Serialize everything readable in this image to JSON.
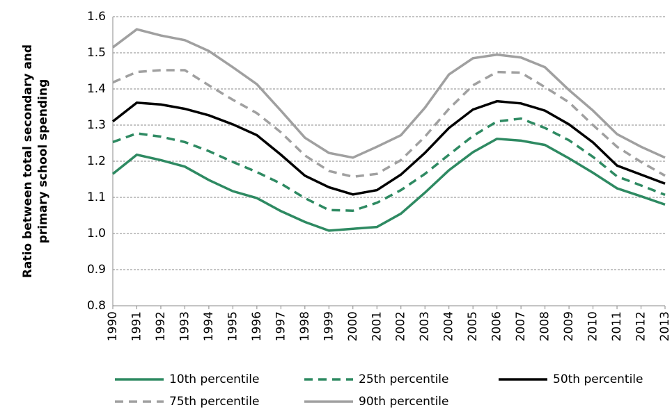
{
  "chart_data": {
    "type": "line",
    "ylabel": [
      "Ratio between total secondary and",
      "primary school spending"
    ],
    "categories": [
      "1990",
      "1991",
      "1992",
      "1993",
      "1994",
      "1995",
      "1996",
      "1997",
      "1998",
      "1999",
      "2000",
      "2001",
      "2002",
      "2003",
      "2004",
      "2005",
      "2006",
      "2007",
      "2008",
      "2009",
      "2010",
      "2011",
      "2012",
      "2013"
    ],
    "series": [
      {
        "name": "10th percentile",
        "color": "#2e8a62",
        "dash": false,
        "values": [
          1.165,
          1.218,
          1.203,
          1.185,
          1.148,
          1.117,
          1.098,
          1.062,
          1.032,
          1.008,
          1.013,
          1.018,
          1.055,
          1.113,
          1.175,
          1.225,
          1.262,
          1.257,
          1.245,
          1.208,
          1.168,
          1.125,
          1.103,
          1.08
        ]
      },
      {
        "name": "25th percentile",
        "color": "#2e8a62",
        "dash": true,
        "values": [
          1.253,
          1.277,
          1.268,
          1.253,
          1.228,
          1.198,
          1.17,
          1.138,
          1.098,
          1.065,
          1.063,
          1.085,
          1.12,
          1.165,
          1.218,
          1.27,
          1.31,
          1.318,
          1.292,
          1.258,
          1.212,
          1.158,
          1.133,
          1.107
        ]
      },
      {
        "name": "50th percentile",
        "color": "#000000",
        "dash": false,
        "values": [
          1.31,
          1.362,
          1.357,
          1.345,
          1.327,
          1.302,
          1.272,
          1.218,
          1.16,
          1.128,
          1.108,
          1.12,
          1.163,
          1.223,
          1.292,
          1.343,
          1.366,
          1.36,
          1.34,
          1.302,
          1.252,
          1.188,
          1.163,
          1.138
        ]
      },
      {
        "name": "75th percentile",
        "color": "#a0a0a0",
        "dash": true,
        "values": [
          1.418,
          1.447,
          1.452,
          1.452,
          1.41,
          1.37,
          1.333,
          1.28,
          1.216,
          1.173,
          1.157,
          1.165,
          1.203,
          1.268,
          1.345,
          1.41,
          1.447,
          1.445,
          1.405,
          1.363,
          1.3,
          1.24,
          1.198,
          1.16
        ]
      },
      {
        "name": "90th percentile",
        "color": "#a0a0a0",
        "dash": false,
        "values": [
          1.515,
          1.565,
          1.548,
          1.535,
          1.505,
          1.46,
          1.413,
          1.34,
          1.265,
          1.223,
          1.21,
          1.24,
          1.272,
          1.348,
          1.44,
          1.485,
          1.495,
          1.487,
          1.46,
          1.397,
          1.34,
          1.275,
          1.24,
          1.21
        ]
      }
    ],
    "ylim": [
      0.8,
      1.6
    ],
    "yticks": [
      0.8,
      0.9,
      {
        "value": 1,
        "label": "1.0"
      },
      1.1,
      1.2,
      1.3,
      1.4,
      1.5,
      1.6
    ],
    "grid": true
  }
}
